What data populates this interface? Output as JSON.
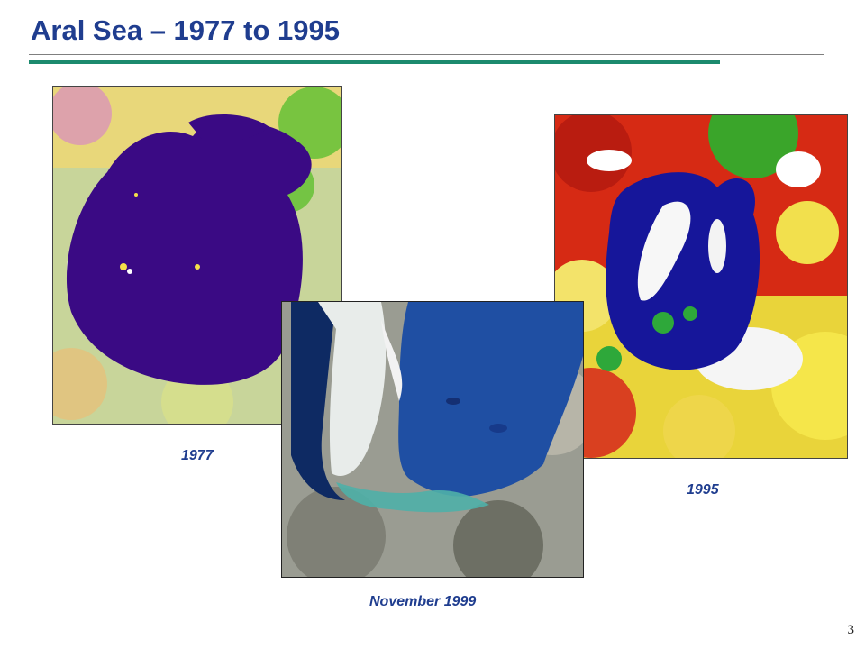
{
  "slide": {
    "title": "Aral Sea – 1977 to  1995",
    "page_number": "3"
  },
  "images": {
    "img1977": {
      "caption": "1977"
    },
    "img1995": {
      "caption": "1995"
    },
    "img1999": {
      "caption": "November 1999"
    }
  },
  "colors": {
    "title": "#1f3d8f",
    "accent_rule": "#1c8a6e",
    "water_1977": "#3a0a84",
    "water_1995": "#16169a",
    "water_1999": "#1f4fa3"
  }
}
